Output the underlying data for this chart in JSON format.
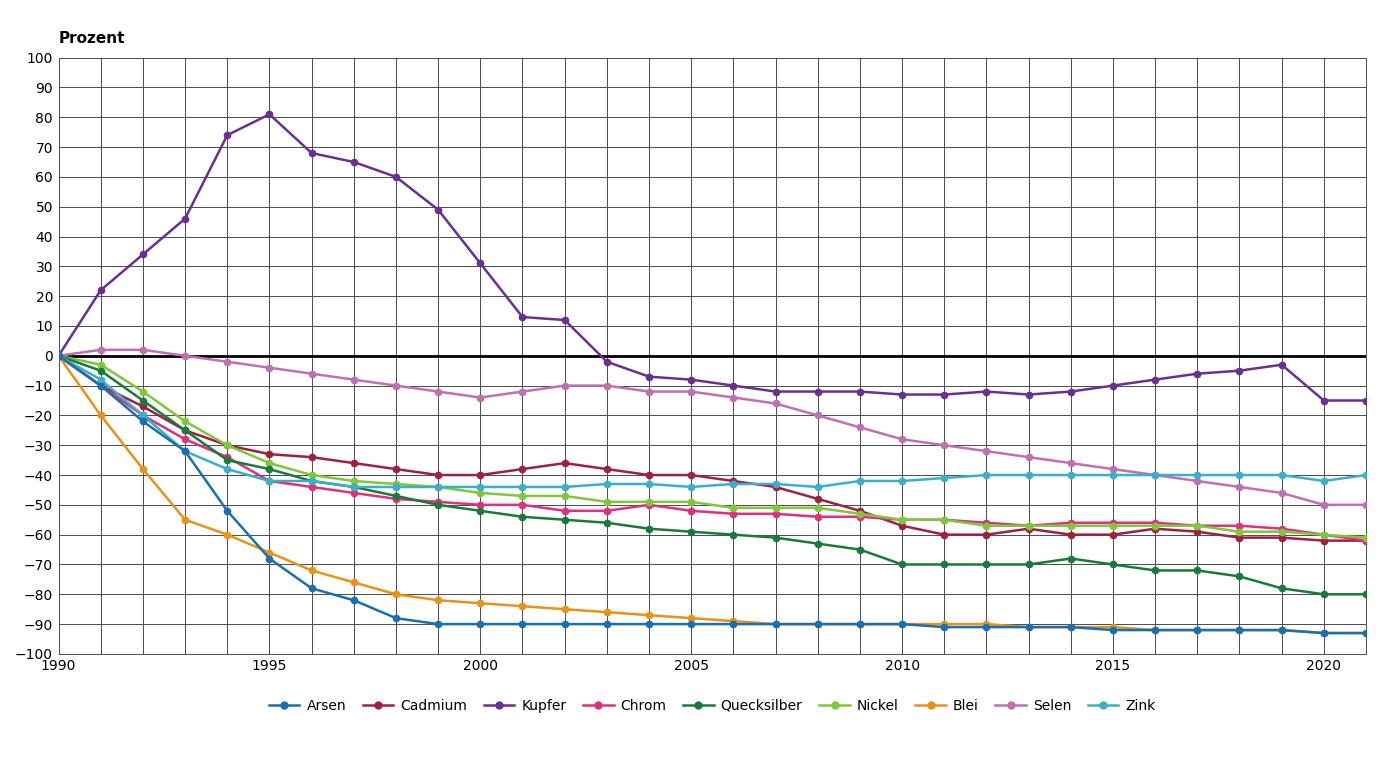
{
  "title": "Prozent",
  "years": [
    1990,
    1991,
    1992,
    1993,
    1994,
    1995,
    1996,
    1997,
    1998,
    1999,
    2000,
    2001,
    2002,
    2003,
    2004,
    2005,
    2006,
    2007,
    2008,
    2009,
    2010,
    2011,
    2012,
    2013,
    2014,
    2015,
    2016,
    2017,
    2018,
    2019,
    2020,
    2021
  ],
  "series": {
    "Arsen": {
      "color": "#1a6faf",
      "values": [
        0,
        -10,
        -22,
        -32,
        -52,
        -68,
        -78,
        -82,
        -88,
        -90,
        -90,
        -90,
        -90,
        -90,
        -90,
        -90,
        -90,
        -90,
        -90,
        -90,
        -90,
        -91,
        -91,
        -91,
        -91,
        -92,
        -92,
        -92,
        -92,
        -92,
        -93,
        -93
      ]
    },
    "Cadmium": {
      "color": "#a0213f",
      "values": [
        0,
        -10,
        -17,
        -25,
        -30,
        -33,
        -34,
        -36,
        -38,
        -40,
        -40,
        -38,
        -36,
        -38,
        -40,
        -40,
        -42,
        -44,
        -48,
        -52,
        -57,
        -60,
        -60,
        -58,
        -60,
        -60,
        -58,
        -59,
        -61,
        -61,
        -62,
        -62
      ]
    },
    "Kupfer": {
      "color": "#6a3090",
      "values": [
        0,
        22,
        34,
        46,
        74,
        81,
        68,
        65,
        60,
        49,
        31,
        13,
        12,
        -2,
        -7,
        -8,
        -10,
        -12,
        -12,
        -12,
        -13,
        -13,
        -12,
        -13,
        -12,
        -10,
        -8,
        -6,
        -5,
        -3,
        -15,
        -15
      ]
    },
    "Chrom": {
      "color": "#e0307a",
      "values": [
        0,
        -10,
        -20,
        -28,
        -34,
        -42,
        -44,
        -46,
        -48,
        -49,
        -50,
        -50,
        -52,
        -52,
        -50,
        -52,
        -53,
        -53,
        -54,
        -54,
        -55,
        -55,
        -56,
        -57,
        -56,
        -56,
        -56,
        -57,
        -57,
        -58,
        -60,
        -62
      ]
    },
    "Quecksilber": {
      "color": "#1a7a3a",
      "values": [
        0,
        -5,
        -15,
        -25,
        -35,
        -38,
        -42,
        -44,
        -47,
        -50,
        -52,
        -54,
        -55,
        -56,
        -58,
        -59,
        -60,
        -61,
        -63,
        -65,
        -70,
        -70,
        -70,
        -70,
        -68,
        -70,
        -72,
        -72,
        -74,
        -78,
        -80,
        -80
      ]
    },
    "Nickel": {
      "color": "#7ec83a",
      "values": [
        0,
        -3,
        -12,
        -22,
        -30,
        -36,
        -40,
        -42,
        -43,
        -44,
        -46,
        -47,
        -47,
        -49,
        -49,
        -49,
        -51,
        -51,
        -51,
        -53,
        -55,
        -55,
        -57,
        -57,
        -57,
        -57,
        -57,
        -57,
        -59,
        -59,
        -60,
        -61
      ]
    },
    "Blei": {
      "color": "#e8921a",
      "values": [
        0,
        -20,
        -38,
        -55,
        -60,
        -66,
        -72,
        -76,
        -80,
        -82,
        -83,
        -84,
        -85,
        -86,
        -87,
        -88,
        -89,
        -90,
        -90,
        -90,
        -90,
        -90,
        -90,
        -91,
        -91,
        -91,
        -92,
        -92,
        -92,
        -92,
        -93,
        -93
      ]
    },
    "Selen": {
      "color": "#c070b0",
      "values": [
        0,
        2,
        2,
        0,
        -2,
        -4,
        -6,
        -8,
        -10,
        -12,
        -14,
        -12,
        -10,
        -10,
        -12,
        -12,
        -14,
        -16,
        -20,
        -24,
        -28,
        -30,
        -32,
        -34,
        -36,
        -38,
        -40,
        -42,
        -44,
        -46,
        -50,
        -50
      ]
    },
    "Zink": {
      "color": "#3ab0c8",
      "values": [
        0,
        -8,
        -20,
        -32,
        -38,
        -42,
        -42,
        -44,
        -44,
        -44,
        -44,
        -44,
        -44,
        -43,
        -43,
        -44,
        -43,
        -43,
        -44,
        -42,
        -42,
        -41,
        -40,
        -40,
        -40,
        -40,
        -40,
        -40,
        -40,
        -40,
        -42,
        -40
      ]
    }
  },
  "xlim": [
    1990,
    2021
  ],
  "ylim": [
    -100,
    100
  ],
  "yticks": [
    -100,
    -90,
    -80,
    -70,
    -60,
    -50,
    -40,
    -30,
    -20,
    -10,
    0,
    10,
    20,
    30,
    40,
    50,
    60,
    70,
    80,
    90,
    100
  ],
  "xticks": [
    1990,
    1995,
    2000,
    2005,
    2010,
    2015,
    2020
  ],
  "hatch_color": "#c8c8c8",
  "grid_color": "#404040",
  "background_color": "#ffffff",
  "fig_background": "#ffffff"
}
